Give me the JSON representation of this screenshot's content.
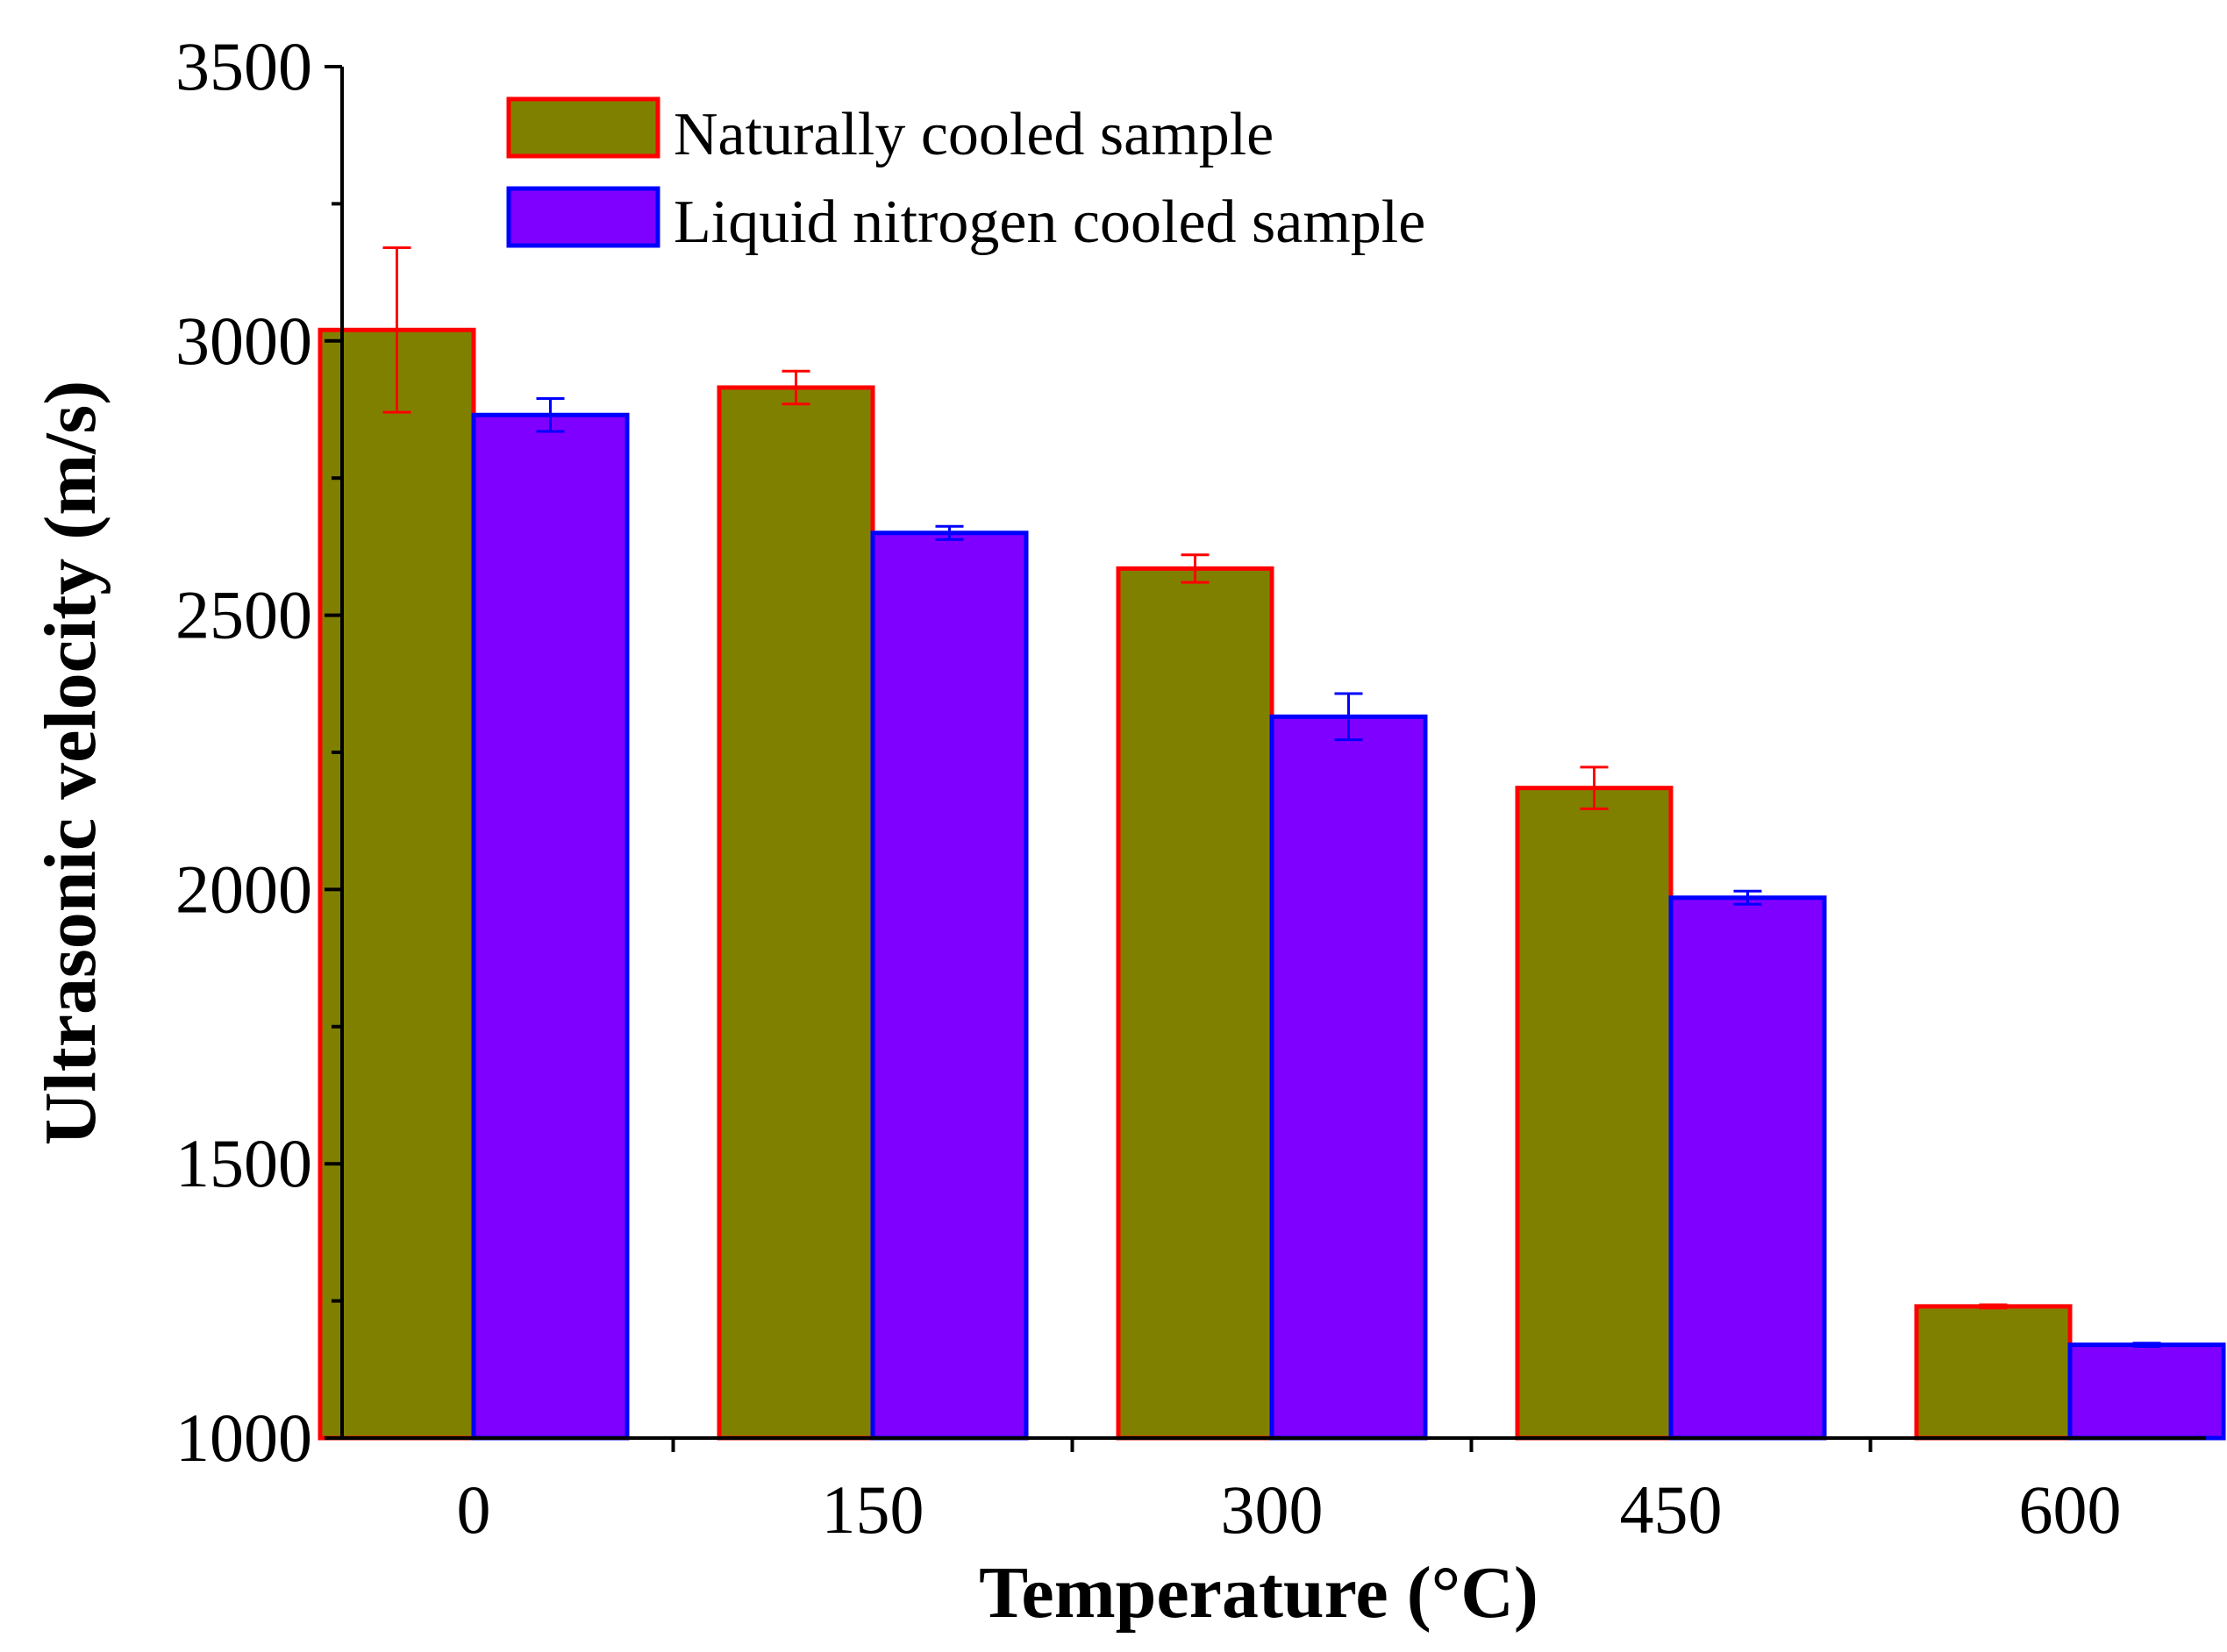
{
  "chart_data": {
    "type": "bar",
    "title": "",
    "xlabel": "Temperature (°C)",
    "ylabel": "Ultrasonic velocity (m/s)",
    "categories": [
      "0",
      "150",
      "300",
      "450",
      "600"
    ],
    "ylim": [
      1000,
      3500
    ],
    "yticks": [
      "1000",
      "1500",
      "2000",
      "2500",
      "3000",
      "3500"
    ],
    "ytick_values": [
      1000,
      1500,
      2000,
      2500,
      3000,
      3500
    ],
    "grid": false,
    "legend_position": "top-left",
    "series": [
      {
        "name": "Naturally cooled sample",
        "fill": "#808000",
        "edge": "#ff0000",
        "values": [
          3020,
          2915,
          2585,
          2185,
          1240
        ],
        "errors": [
          150,
          30,
          25,
          38,
          3
        ]
      },
      {
        "name": "Liquid nitrogen cooled sample",
        "fill": "#8000ff",
        "edge": "#0000ff",
        "values": [
          2865,
          2650,
          2315,
          1985,
          1170
        ],
        "errors": [
          30,
          12,
          42,
          12,
          3
        ]
      }
    ]
  }
}
